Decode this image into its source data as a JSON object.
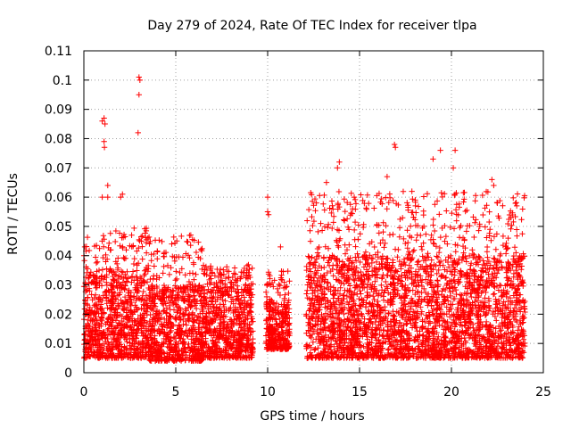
{
  "chart_data": {
    "type": "scatter",
    "title": "Day 279 of 2024, Rate Of TEC Index for receiver tlpa",
    "xlabel": "GPS time / hours",
    "ylabel": "ROTI / TECUs",
    "xlim": [
      0,
      25
    ],
    "ylim": [
      0,
      0.11
    ],
    "x_ticks": [
      "0",
      "5",
      "10",
      "15",
      "20",
      "25"
    ],
    "y_ticks": [
      "0",
      "0.01",
      "0.02",
      "0.03",
      "0.04",
      "0.05",
      "0.06",
      "0.07",
      "0.08",
      "0.09",
      "0.1",
      "0.11"
    ],
    "grid": true,
    "marker": "plus",
    "series_color": "#ff0000",
    "data_gaps_hours": [
      [
        9.2,
        9.9
      ],
      [
        11.2,
        12.1
      ],
      [
        24.0,
        25.0
      ]
    ],
    "notable_points": [
      {
        "x": 0.05,
        "y": 0.043
      },
      {
        "x": 1.0,
        "y": 0.086
      },
      {
        "x": 1.1,
        "y": 0.087
      },
      {
        "x": 1.15,
        "y": 0.085
      },
      {
        "x": 1.1,
        "y": 0.079
      },
      {
        "x": 1.12,
        "y": 0.077
      },
      {
        "x": 1.3,
        "y": 0.064
      },
      {
        "x": 1.0,
        "y": 0.06
      },
      {
        "x": 1.3,
        "y": 0.06
      },
      {
        "x": 2.1,
        "y": 0.061
      },
      {
        "x": 2.0,
        "y": 0.06
      },
      {
        "x": 2.6,
        "y": 0.047
      },
      {
        "x": 3.0,
        "y": 0.101
      },
      {
        "x": 3.05,
        "y": 0.1
      },
      {
        "x": 3.0,
        "y": 0.095
      },
      {
        "x": 2.95,
        "y": 0.082
      },
      {
        "x": 10.0,
        "y": 0.06
      },
      {
        "x": 10.0,
        "y": 0.055
      },
      {
        "x": 10.05,
        "y": 0.054
      },
      {
        "x": 10.7,
        "y": 0.043
      },
      {
        "x": 13.2,
        "y": 0.065
      },
      {
        "x": 13.9,
        "y": 0.072
      },
      {
        "x": 13.8,
        "y": 0.07
      },
      {
        "x": 16.9,
        "y": 0.078
      },
      {
        "x": 16.95,
        "y": 0.077
      },
      {
        "x": 16.5,
        "y": 0.067
      },
      {
        "x": 19.0,
        "y": 0.073
      },
      {
        "x": 19.4,
        "y": 0.076
      },
      {
        "x": 20.2,
        "y": 0.076
      },
      {
        "x": 20.1,
        "y": 0.07
      },
      {
        "x": 22.2,
        "y": 0.066
      },
      {
        "x": 22.3,
        "y": 0.064
      },
      {
        "x": 22.5,
        "y": 0.058
      }
    ],
    "density_profile": [
      {
        "x_range": [
          0.0,
          3.5
        ],
        "typical_range": [
          0.005,
          0.035
        ],
        "scattered_max": 0.05
      },
      {
        "x_range": [
          3.5,
          6.5
        ],
        "typical_range": [
          0.004,
          0.03
        ],
        "scattered_max": 0.048
      },
      {
        "x_range": [
          6.5,
          9.2
        ],
        "typical_range": [
          0.005,
          0.03
        ],
        "scattered_max": 0.037
      },
      {
        "x_range": [
          9.9,
          11.2
        ],
        "typical_range": [
          0.008,
          0.025
        ],
        "scattered_max": 0.035
      },
      {
        "x_range": [
          12.1,
          24.0
        ],
        "typical_range": [
          0.005,
          0.04
        ],
        "scattered_max": 0.062
      }
    ]
  }
}
